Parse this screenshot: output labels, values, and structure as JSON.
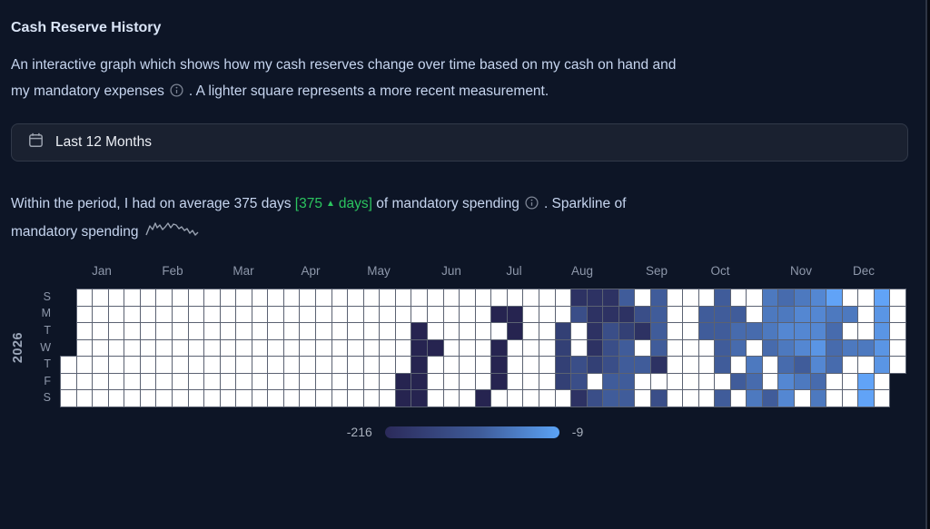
{
  "header": {
    "title": "Cash Reserve History"
  },
  "description": {
    "line1": "An interactive graph which shows how my cash reserves change over time based on my cash on hand and",
    "line2_pre": "my mandatory expenses",
    "line2_post": ". A lighter square represents a more recent measurement."
  },
  "period_selector": {
    "label": "Last 12 Months",
    "icon": "calendar-icon"
  },
  "summary": {
    "line1_pre": "Within the period, I had on average 375 days ",
    "highlight_open": "[375",
    "highlight_arrow": "▲",
    "highlight_close": "days]",
    "line1_mid": " of mandatory spending",
    "line1_post": ". Sparkline of",
    "line2": "mandatory spending",
    "highlight_color": "#2bc45f"
  },
  "chart_data": {
    "type": "heatmap",
    "title": "Cash Reserve History",
    "year": "2026",
    "months": [
      "Jan",
      "Feb",
      "Mar",
      "Apr",
      "May",
      "Jun",
      "Jul",
      "Aug",
      "Sep",
      "Oct",
      "Nov",
      "Dec"
    ],
    "day_labels": [
      "S",
      "M",
      "T",
      "W",
      "T",
      "F",
      "S"
    ],
    "layout_note": "53 weekly columns x 7 day rows; Jan 1 2026 falls on Thursday (row index 4 of column 0)",
    "scale": {
      "min": -216,
      "max": -9,
      "color_min": "#262450",
      "color_max": "#61a3f7",
      "empty_color": "#ffffff",
      "level_to_value": "value = -216 + level * 23 (levels 0-9; '.' = no measurement; '-' = outside year)"
    },
    "grid_columns": [
      "----...",
      ".......",
      ".......",
      ".......",
      ".......",
      ".......",
      ".......",
      ".......",
      ".......",
      ".......",
      ".......",
      ".......",
      ".......",
      ".......",
      ".......",
      ".......",
      ".......",
      ".......",
      ".......",
      ".......",
      ".......",
      ".....00",
      "..00000",
      "...0...",
      ".......",
      ".......",
      "......0",
      ".0.000.",
      ".00....",
      ".......",
      ".......",
      "..2222.",
      "13..331",
      "11112.3",
      "1133344",
      "4124444",
      ".31.4..",
      "44441.3",
      ".......",
      ".......",
      ".44....",
      "44444.4",
      ".455.4.",
      "..5.656",
      "6665..4",
      "5676577",
      "677746.",
      "7778756",
      "96555..",
      ".6.6...",
      "...6.99",
      "98888..",
      ".....--"
    ],
    "legend": {
      "min_label": "-216",
      "max_label": "-9"
    }
  }
}
